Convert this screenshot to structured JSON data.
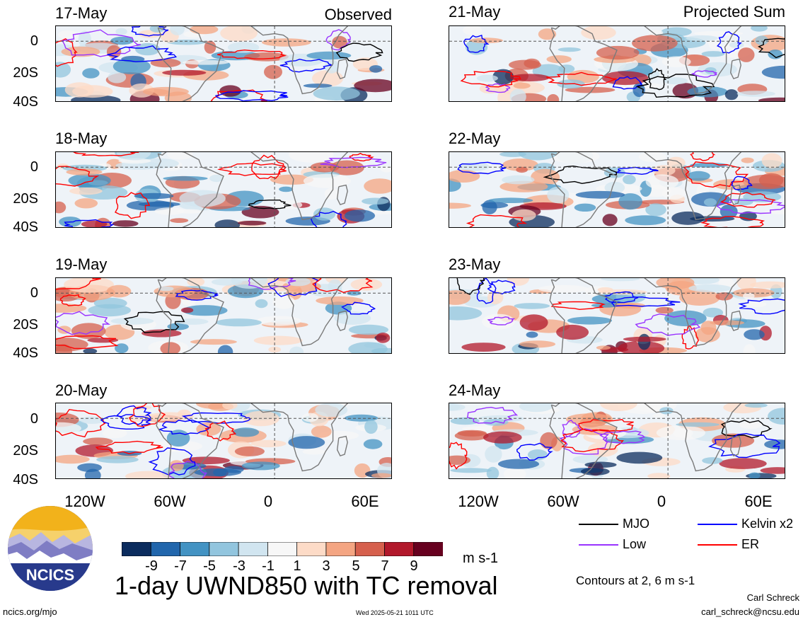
{
  "header": {
    "observed_label": "Observed",
    "projected_label": "Projected Sum"
  },
  "panels": [
    {
      "date": "17-May",
      "column": "left",
      "row": 0
    },
    {
      "date": "18-May",
      "column": "left",
      "row": 1
    },
    {
      "date": "19-May",
      "column": "left",
      "row": 2
    },
    {
      "date": "20-May",
      "column": "left",
      "row": 3
    },
    {
      "date": "21-May",
      "column": "right",
      "row": 0
    },
    {
      "date": "22-May",
      "column": "right",
      "row": 1
    },
    {
      "date": "23-May",
      "column": "right",
      "row": 2
    },
    {
      "date": "24-May",
      "column": "right",
      "row": 3
    }
  ],
  "axes": {
    "latitude_labels": [
      "0",
      "20S",
      "40S"
    ],
    "longitude_labels": [
      "120W",
      "60W",
      "0",
      "60E"
    ]
  },
  "colorbar": {
    "labels": [
      "-9",
      "-7",
      "-5",
      "-3",
      "-1",
      "1",
      "3",
      "5",
      "7",
      "9"
    ],
    "colors": [
      "#0b2c5e",
      "#2166ac",
      "#4393c3",
      "#92c5de",
      "#d1e5f0",
      "#f7f7f7",
      "#fddbc7",
      "#f4a582",
      "#d6604d",
      "#b2182b",
      "#67001f"
    ],
    "units": "m s-1"
  },
  "legend": {
    "items": [
      {
        "label": "MJO",
        "color": "#000000"
      },
      {
        "label": "Kelvin x2",
        "color": "#0000ff"
      },
      {
        "label": "Low",
        "color": "#9933ff"
      },
      {
        "label": "ER",
        "color": "#ff0000"
      }
    ],
    "contours_note": "Contours at 2, 6 m s-1"
  },
  "footer": {
    "title": "1-day UWND850 with TC removal",
    "logo_text": "NCICS",
    "website": "ncics.org/mjo",
    "timestamp": "Wed 2025-05-21 1011 UTC",
    "author": "Carl Schreck",
    "email": "carl_schreck@ncsu.edu"
  }
}
